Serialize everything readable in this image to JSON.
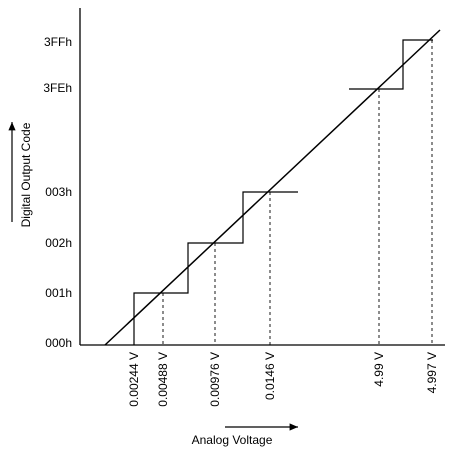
{
  "y_axis": {
    "title": "Digital Output Code",
    "labels": [
      "3FFh",
      "3FEh",
      "003h",
      "002h",
      "001h",
      "000h"
    ]
  },
  "x_axis": {
    "title": "Analog Voltage",
    "labels": [
      "0.00244 V",
      "0.00488 V",
      "0.00976 V",
      "0.0146 V",
      "4.99 V",
      "4.997 V"
    ]
  }
}
